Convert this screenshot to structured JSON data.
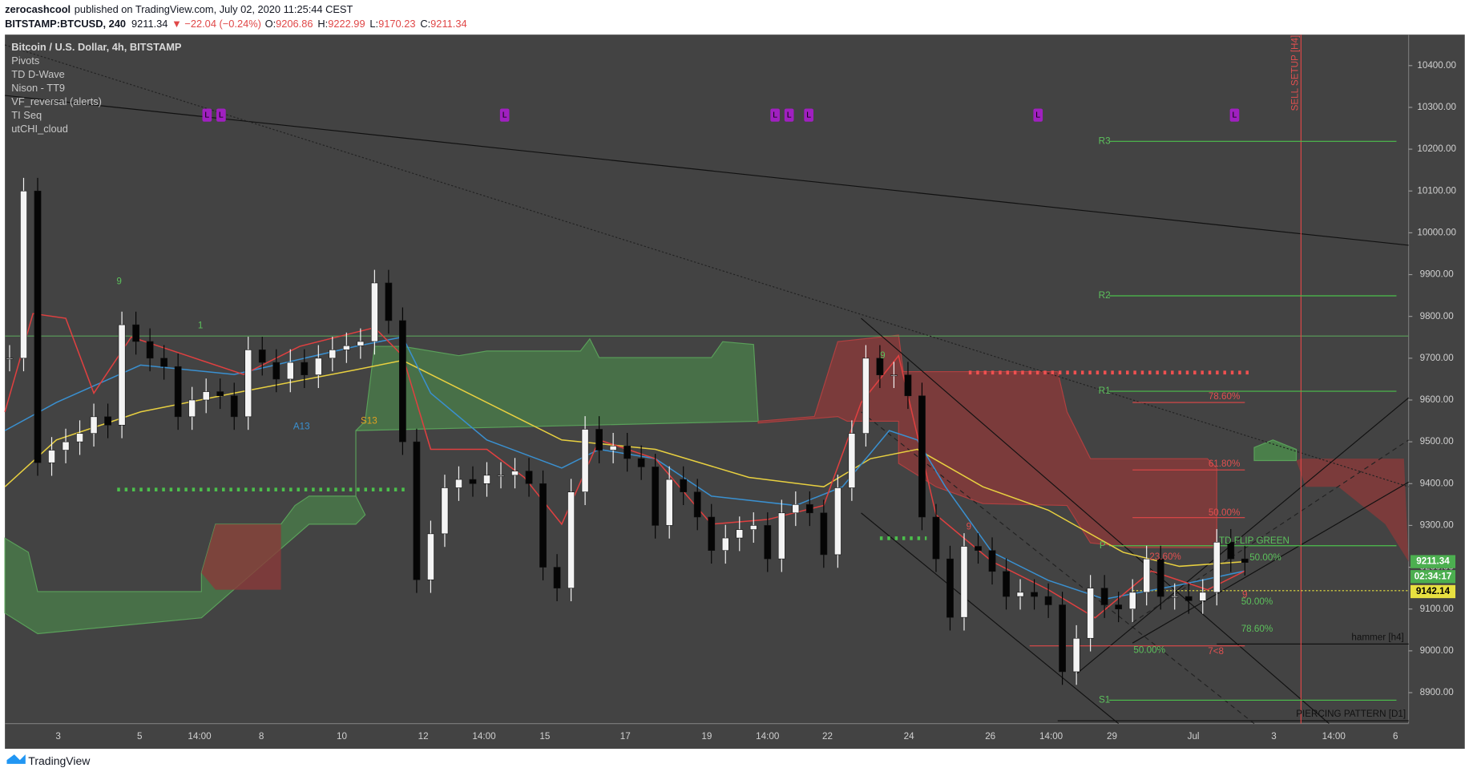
{
  "header": {
    "author": "zerocashcool",
    "published": "published on TradingView.com, July 02, 2020 11:25:44 CEST",
    "symbol": "BITSTAMP:BTCUSD, 240",
    "last": "9211.34",
    "change": "▼ −22.04 (−0.24%)",
    "ohlc": [
      {
        "label": "O:",
        "value": "9206.86"
      },
      {
        "label": "H:",
        "value": "9222.99"
      },
      {
        "label": "L:",
        "value": "9170.23"
      },
      {
        "label": "C:",
        "value": "9211.34"
      }
    ]
  },
  "legend": [
    "Bitcoin / U.S. Dollar, 4h, BITSTAMP",
    "Pivots",
    "TD D-Wave",
    "Nison - TT9",
    "VF_reversal (alerts)",
    "TI Seq",
    "utCHI_cloud"
  ],
  "chart_data": {
    "type": "candlestick",
    "close": [
      9700,
      10100,
      9450,
      9480,
      9500,
      9520,
      9560,
      9540,
      9780,
      9740,
      9700,
      9680,
      9560,
      9600,
      9620,
      9610,
      9560,
      9720,
      9690,
      9650,
      9690,
      9660,
      9700,
      9720,
      9730,
      9740,
      9880,
      9790,
      9500,
      9170,
      9280,
      9390,
      9410,
      9400,
      9420,
      9420,
      9430,
      9400,
      9200,
      9150,
      9380,
      9530,
      9480,
      9490,
      9460,
      9440,
      9300,
      9410,
      9380,
      9320,
      9240,
      9270,
      9290,
      9300,
      9220,
      9330,
      9350,
      9330,
      9230,
      9390,
      9520,
      9700,
      9660,
      9660,
      9610,
      9320,
      9220,
      9080,
      9250,
      9240,
      9190,
      9130,
      9140,
      9130,
      9110,
      8950,
      9030,
      9150,
      9110,
      9100,
      9140,
      9220,
      9130,
      9130,
      9120,
      9140,
      9260,
      9220,
      9211.34
    ],
    "ylim": [
      8826,
      10474
    ],
    "yticks": [
      {
        "value": 10400,
        "label": "10400.00"
      },
      {
        "value": 10300,
        "label": "10300.00"
      },
      {
        "value": 10200,
        "label": "10200.00"
      },
      {
        "value": 10100,
        "label": "10100.00"
      },
      {
        "value": 10000,
        "label": "10000.00"
      },
      {
        "value": 9900,
        "label": "9900.00"
      },
      {
        "value": 9800,
        "label": "9800.00"
      },
      {
        "value": 9700,
        "label": "9700.00"
      },
      {
        "value": 9600,
        "label": "9600.00"
      },
      {
        "value": 9500,
        "label": "9500.00"
      },
      {
        "value": 9400,
        "label": "9400.00"
      },
      {
        "value": 9300,
        "label": "9300.00"
      },
      {
        "value": 9200,
        "label": "9200.00"
      },
      {
        "value": 9100,
        "label": "9100.00"
      },
      {
        "value": 9000,
        "label": "9000.00"
      },
      {
        "value": 8900,
        "label": "8900.00"
      }
    ],
    "x_labels": [
      "3",
      "5",
      "14:00",
      "8",
      "10",
      "12",
      "14:00",
      "15",
      "17",
      "19",
      "14:00",
      "22",
      "24",
      "26",
      "14:00",
      "29",
      "Jul",
      "3",
      "14:00",
      "6"
    ]
  },
  "price_labels": {
    "last": "9211.34",
    "countdown": "02:34:17",
    "line": "9142.14"
  },
  "annotations": [
    "R3",
    "R2",
    "R1",
    "P",
    "S1",
    "78.60%",
    "61.80%",
    "50.00%",
    "23.60%",
    "TD FLIP GREEN",
    "50.00%",
    "50.00%",
    "78.60%",
    "50.00%",
    "7<8",
    "hammer [h4]",
    "PIERCING PATTERN [D1]",
    "SELL SETUP [H4]",
    "9",
    "1",
    "9",
    "A13",
    "S13",
    "9",
    "9"
  ],
  "badges": [
    "L",
    "L",
    "L",
    "L",
    "L",
    "L",
    "L",
    "L"
  ],
  "footer": "TradingView"
}
